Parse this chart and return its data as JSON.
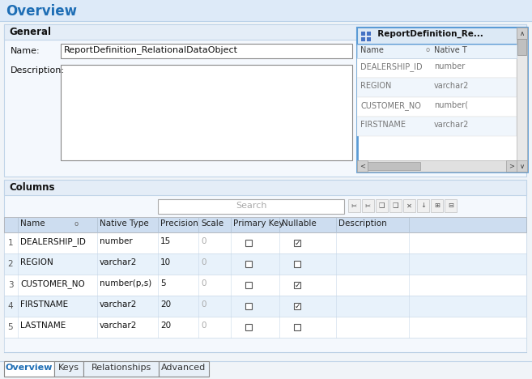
{
  "title": "Overview",
  "title_color": "#1e6eb5",
  "bg_top": "#dce9f7",
  "bg_main": "#f0f4f8",
  "general_section": "General",
  "name_label": "Name:",
  "name_value": "ReportDefinition_RelationalDataObject",
  "desc_label": "Description:",
  "popup_title": "  ReportDefinition_Re...",
  "popup_rows": [
    [
      "DEALERSHIP_ID",
      "number"
    ],
    [
      "REGION",
      "varchar2"
    ],
    [
      "CUSTOMER_NO",
      "number("
    ],
    [
      "FIRSTNAME",
      "varchar2"
    ]
  ],
  "columns_section": "Columns",
  "search_placeholder": "Search",
  "table_headers": [
    "",
    "Name",
    "Native Type",
    "Precision",
    "Scale",
    "Primary Key",
    "Nullable",
    "Description"
  ],
  "table_rows": [
    [
      "1",
      "DEALERSHIP_ID",
      "number",
      "15",
      "0",
      false,
      true,
      ""
    ],
    [
      "2",
      "REGION",
      "varchar2",
      "10",
      "0",
      false,
      false,
      ""
    ],
    [
      "3",
      "CUSTOMER_NO",
      "number(p,s)",
      "5",
      "0",
      false,
      true,
      ""
    ],
    [
      "4",
      "FIRSTNAME",
      "varchar2",
      "20",
      "0",
      false,
      true,
      ""
    ],
    [
      "5",
      "LASTNAME",
      "varchar2",
      "20",
      "0",
      false,
      false,
      ""
    ]
  ],
  "tabs": [
    "Overview",
    "Keys",
    "Relationships",
    "Advanced"
  ],
  "active_tab": "Overview",
  "row_colors": [
    "#ffffff",
    "#e8f2fb"
  ]
}
